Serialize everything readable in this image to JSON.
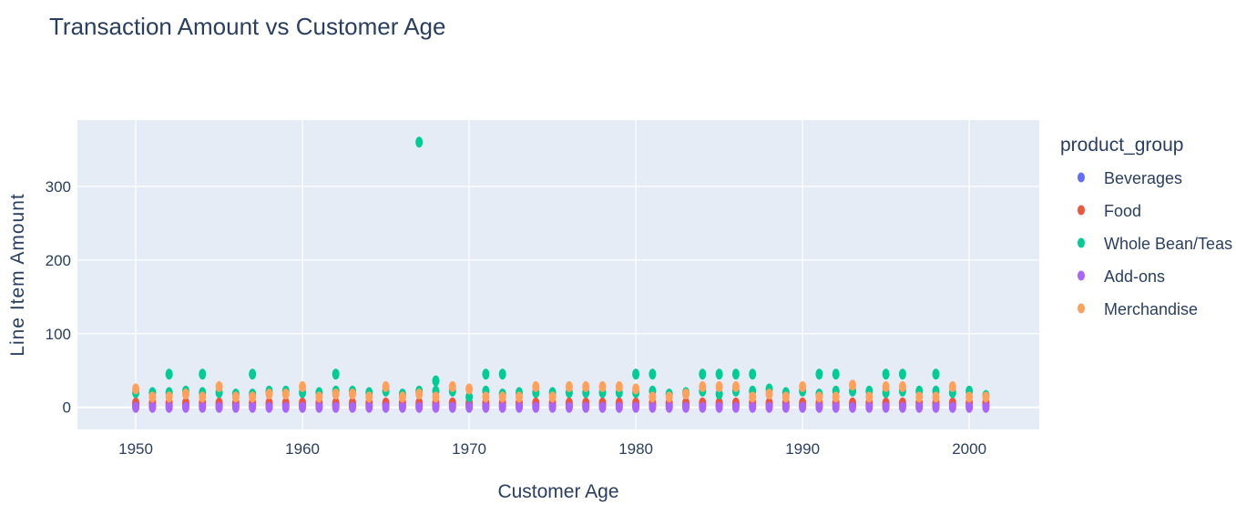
{
  "chart_data": {
    "type": "scatter",
    "title": "Transaction Amount vs Customer Age",
    "xlabel": "Customer Age",
    "ylabel": "Line Item Amount",
    "xlim": [
      1946.5,
      2004.2
    ],
    "ylim": [
      -30,
      390
    ],
    "xticks": [
      1950,
      1960,
      1970,
      1980,
      1990,
      2000
    ],
    "yticks": [
      0,
      100,
      200,
      300
    ],
    "grid": true,
    "legend_title": "product_group",
    "legend_position": "right",
    "series": [
      {
        "name": "Beverages",
        "color": "#636efa",
        "x": [
          1950,
          1951,
          1952,
          1953,
          1954,
          1955,
          1956,
          1957,
          1958,
          1959,
          1960,
          1961,
          1962,
          1963,
          1964,
          1965,
          1966,
          1967,
          1968,
          1969,
          1970,
          1971,
          1972,
          1973,
          1974,
          1975,
          1976,
          1977,
          1978,
          1979,
          1980,
          1981,
          1982,
          1983,
          1984,
          1985,
          1986,
          1987,
          1988,
          1989,
          1990,
          1991,
          1992,
          1993,
          1994,
          1995,
          1996,
          1997,
          1998,
          1999,
          2000,
          2001
        ],
        "y": [
          2.5,
          2.5,
          2.5,
          2.5,
          2.5,
          2.5,
          2.5,
          2.5,
          2.5,
          2.5,
          2.5,
          2.5,
          2.5,
          2.5,
          2.5,
          2.5,
          2.5,
          2.5,
          2.5,
          2.5,
          2.5,
          2.5,
          2.5,
          2.5,
          2.5,
          2.5,
          2.5,
          2.5,
          2.5,
          2.5,
          2.5,
          2.5,
          2.5,
          2.5,
          2.5,
          2.5,
          2.5,
          2.5,
          2.5,
          2.5,
          2.5,
          2.5,
          2.5,
          2.5,
          2.5,
          2.5,
          2.5,
          2.5,
          2.5,
          2.5,
          2.5,
          2.5
        ]
      },
      {
        "name": "Food",
        "color": "#ef553b",
        "x": [
          1950,
          1951,
          1952,
          1953,
          1954,
          1955,
          1956,
          1957,
          1958,
          1959,
          1960,
          1961,
          1962,
          1963,
          1964,
          1965,
          1966,
          1967,
          1968,
          1969,
          1970,
          1971,
          1972,
          1973,
          1974,
          1975,
          1976,
          1977,
          1978,
          1979,
          1980,
          1981,
          1982,
          1983,
          1984,
          1985,
          1986,
          1987,
          1988,
          1989,
          1990,
          1991,
          1992,
          1993,
          1994,
          1995,
          1996,
          1997,
          1998,
          1999,
          2000,
          2001
        ],
        "y": [
          6,
          6,
          6,
          6,
          6,
          6,
          6,
          6,
          6,
          6,
          6,
          6,
          6,
          6,
          6,
          6,
          6,
          6,
          6,
          6,
          6,
          6,
          6,
          6,
          6,
          6,
          6,
          6,
          6,
          6,
          6,
          6,
          6,
          6,
          6,
          6,
          6,
          6,
          6,
          6,
          6,
          6,
          6,
          6,
          6,
          6,
          6,
          6,
          6,
          6,
          6,
          6
        ]
      },
      {
        "name": "Whole Bean/Teas",
        "color": "#00cc96",
        "x": [
          1950,
          1951,
          1952,
          1952,
          1953,
          1954,
          1954,
          1955,
          1956,
          1957,
          1957,
          1958,
          1959,
          1960,
          1961,
          1962,
          1962,
          1963,
          1964,
          1965,
          1966,
          1967,
          1967,
          1968,
          1968,
          1969,
          1970,
          1971,
          1971,
          1972,
          1972,
          1973,
          1974,
          1975,
          1976,
          1977,
          1978,
          1979,
          1980,
          1980,
          1981,
          1981,
          1982,
          1983,
          1984,
          1984,
          1985,
          1985,
          1986,
          1986,
          1987,
          1987,
          1988,
          1989,
          1990,
          1991,
          1991,
          1992,
          1992,
          1993,
          1994,
          1995,
          1995,
          1996,
          1996,
          1997,
          1998,
          1998,
          1999,
          2000,
          2001
        ],
        "y": [
          20,
          20,
          20,
          45,
          22,
          20,
          45,
          20,
          18,
          18,
          45,
          22,
          22,
          20,
          20,
          22,
          45,
          22,
          20,
          22,
          18,
          22,
          360,
          22,
          36,
          22,
          14,
          22,
          45,
          18,
          45,
          20,
          20,
          20,
          20,
          20,
          20,
          20,
          20,
          45,
          22,
          45,
          18,
          20,
          22,
          45,
          18,
          45,
          22,
          45,
          22,
          45,
          25,
          20,
          22,
          18,
          45,
          22,
          45,
          22,
          22,
          20,
          45,
          22,
          45,
          22,
          22,
          45,
          20,
          22,
          16
        ]
      },
      {
        "name": "Add-ons",
        "color": "#ab63fa",
        "x": [
          1950,
          1951,
          1952,
          1953,
          1954,
          1955,
          1956,
          1957,
          1958,
          1959,
          1960,
          1961,
          1962,
          1963,
          1964,
          1965,
          1966,
          1967,
          1968,
          1969,
          1970,
          1971,
          1972,
          1973,
          1974,
          1975,
          1976,
          1977,
          1978,
          1979,
          1980,
          1981,
          1982,
          1983,
          1984,
          1985,
          1986,
          1987,
          1988,
          1989,
          1990,
          1991,
          1992,
          1993,
          1994,
          1995,
          1996,
          1997,
          1998,
          1999,
          2000,
          2001
        ],
        "y": [
          0,
          0,
          0,
          0,
          0,
          0,
          0,
          0,
          0,
          0,
          0,
          0,
          0,
          0,
          0,
          0,
          0,
          0,
          0,
          0,
          0,
          0,
          0,
          0,
          0,
          0,
          0,
          0,
          0,
          0,
          0,
          0,
          0,
          0,
          0,
          0,
          0,
          0,
          0,
          0,
          0,
          0,
          0,
          0,
          0,
          0,
          0,
          0,
          0,
          0,
          0,
          0
        ]
      },
      {
        "name": "Merchandise",
        "color": "#ffa15a",
        "x": [
          1950,
          1951,
          1952,
          1953,
          1954,
          1955,
          1956,
          1957,
          1958,
          1959,
          1960,
          1961,
          1962,
          1963,
          1964,
          1965,
          1966,
          1967,
          1968,
          1969,
          1970,
          1971,
          1972,
          1973,
          1974,
          1975,
          1976,
          1977,
          1978,
          1979,
          1980,
          1981,
          1982,
          1983,
          1984,
          1985,
          1986,
          1987,
          1988,
          1989,
          1990,
          1991,
          1992,
          1993,
          1994,
          1995,
          1996,
          1997,
          1998,
          1999,
          2000,
          2001
        ],
        "y": [
          25,
          14,
          14,
          18,
          14,
          28,
          14,
          14,
          18,
          18,
          28,
          14,
          18,
          18,
          14,
          28,
          14,
          18,
          14,
          28,
          25,
          14,
          14,
          14,
          28,
          14,
          28,
          28,
          28,
          28,
          25,
          14,
          14,
          18,
          28,
          28,
          28,
          14,
          18,
          14,
          28,
          14,
          14,
          30,
          14,
          28,
          28,
          14,
          14,
          28,
          14,
          14
        ]
      }
    ]
  }
}
